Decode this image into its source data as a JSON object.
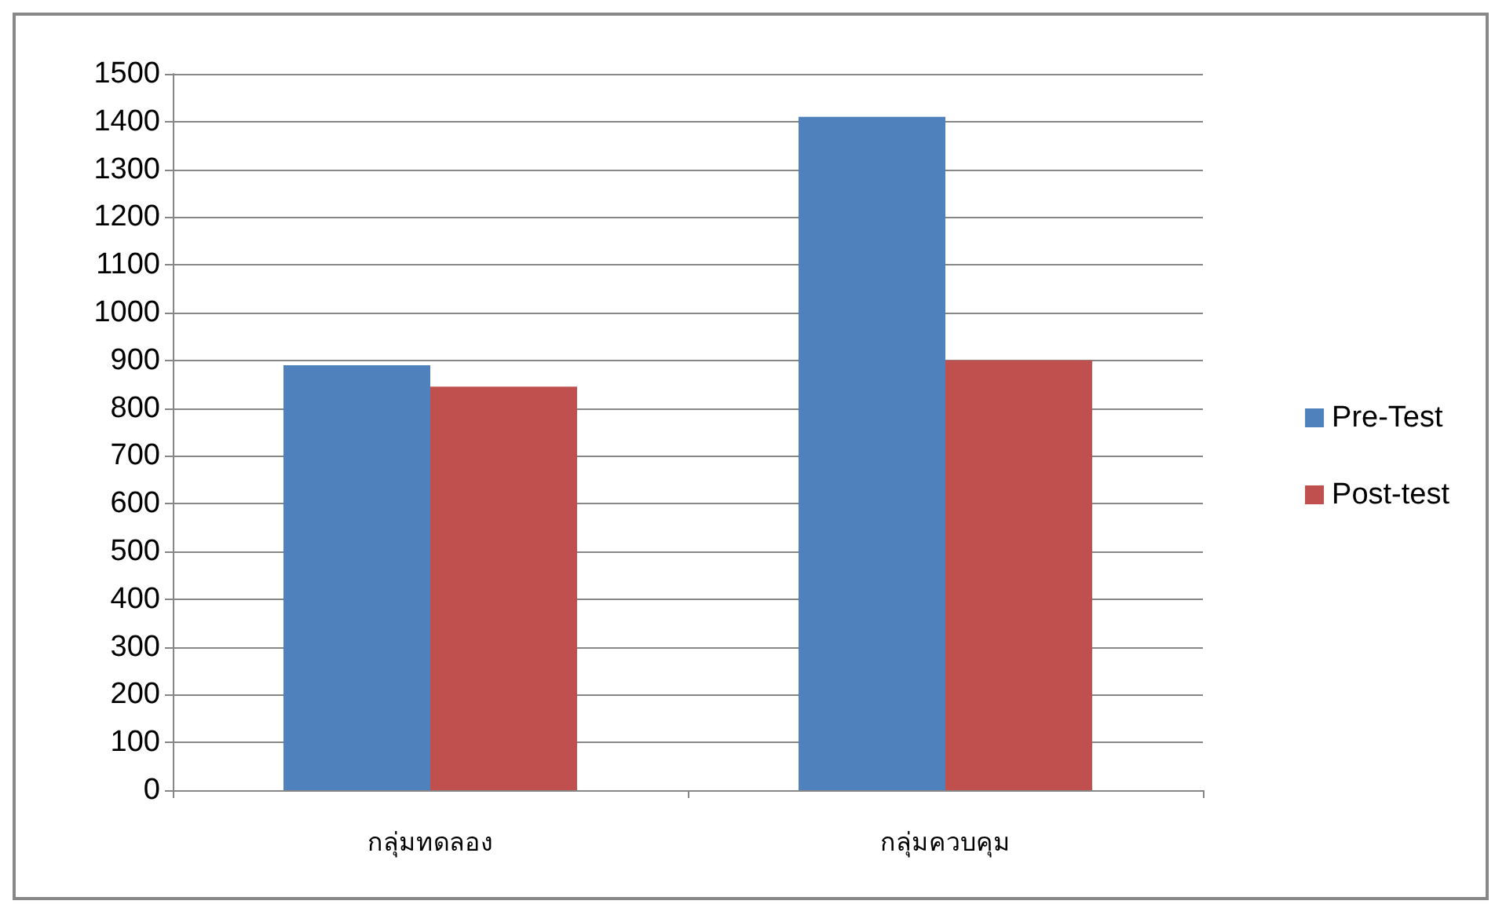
{
  "chart_data": {
    "type": "bar",
    "categories": [
      "กลุ่มทดลอง",
      "กลุ่มควบคุม"
    ],
    "series": [
      {
        "name": "Pre-Test",
        "color": "#4f81bd",
        "values": [
          890,
          1410
        ]
      },
      {
        "name": "Post-test",
        "color": "#c0504d",
        "values": [
          845,
          900
        ]
      }
    ],
    "ylim": [
      0,
      1500
    ],
    "yticks": [
      0,
      100,
      200,
      300,
      400,
      500,
      600,
      700,
      800,
      900,
      1000,
      1100,
      1200,
      1300,
      1400,
      1500
    ],
    "grid": "y",
    "legend": "right"
  }
}
